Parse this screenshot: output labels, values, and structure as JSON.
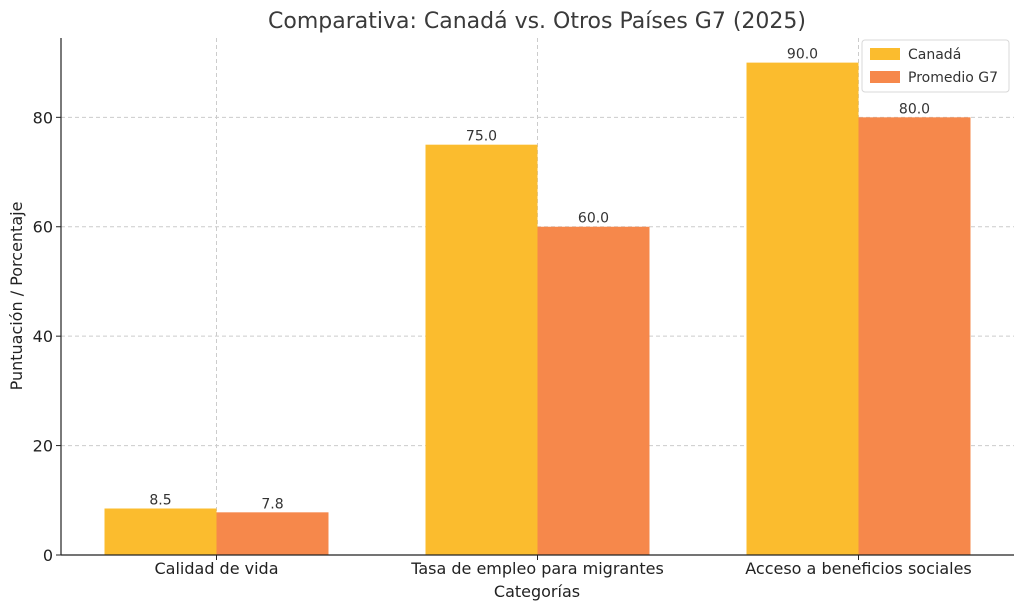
{
  "chart_data": {
    "type": "bar",
    "title": "Comparativa: Canadá vs. Otros Países G7 (2025)",
    "xlabel": "Categorías",
    "ylabel": "Puntuación / Porcentaje",
    "categories": [
      "Calidad de vida",
      "Tasa de empleo para migrantes",
      "Acceso a beneficios sociales"
    ],
    "series": [
      {
        "name": "Canadá",
        "values": [
          8.5,
          75.0,
          90.0
        ],
        "color": "#FBBC2E"
      },
      {
        "name": "Promedio G7",
        "values": [
          7.8,
          60.0,
          80.0
        ],
        "color": "#F6884B"
      }
    ],
    "value_labels": [
      [
        "8.5",
        "75.0",
        "90.0"
      ],
      [
        "7.8",
        "60.0",
        "80.0"
      ]
    ],
    "ylim": [
      0,
      94.5
    ],
    "yticks": [
      0,
      20,
      40,
      60,
      80
    ],
    "grid": true,
    "legend_position": "top-right"
  }
}
